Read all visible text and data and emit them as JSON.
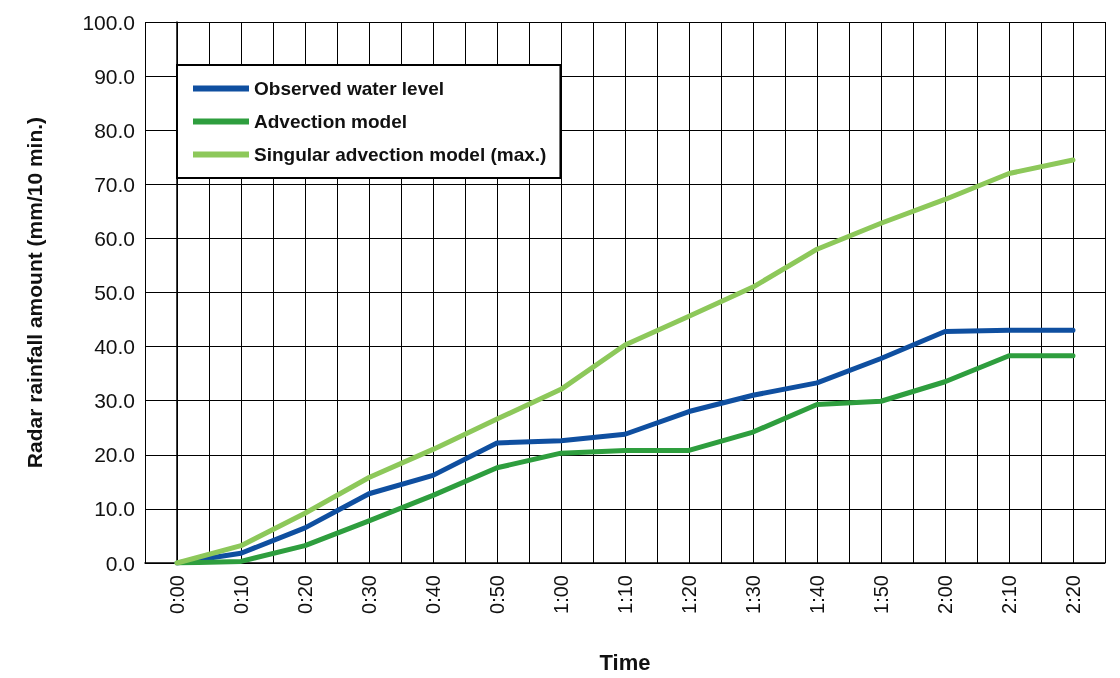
{
  "chart_data": {
    "type": "line",
    "xlabel": "Time",
    "ylabel": "Radar rainfall amount (mm/10 min.)",
    "x": [
      0,
      0.1667,
      0.3333,
      0.5,
      0.6667,
      0.8333,
      1,
      1.1667,
      1.3333,
      1.5,
      1.6667,
      1.8333,
      2,
      2.1667,
      2.3333
    ],
    "series": [
      {
        "name": "Observed water level",
        "color": "#0f4fa0",
        "values": [
          0,
          1.8,
          6.5,
          12.8,
          16.2,
          22.2,
          22.6,
          23.8,
          28.0,
          31.0,
          33.3,
          37.8,
          42.8,
          43.0,
          43.0
        ]
      },
      {
        "name": "Advection model",
        "color": "#2e9e3e",
        "values": [
          0,
          0.3,
          3.2,
          7.8,
          12.5,
          17.6,
          20.3,
          20.8,
          20.8,
          24.2,
          29.3,
          29.9,
          33.5,
          38.3,
          38.3
        ]
      },
      {
        "name": "Singular advection model (max.)",
        "color": "#8dc85a",
        "values": [
          0,
          3.2,
          9.2,
          15.8,
          21.0,
          26.6,
          32.1,
          40.3,
          45.6,
          51.0,
          58.0,
          62.8,
          67.2,
          72.0,
          74.5
        ]
      }
    ],
    "xlim": [
      -0.0833,
      2.4167
    ],
    "xticks": [
      {
        "value": -0.0833,
        "label": null
      },
      {
        "value": 0,
        "label": "0:00"
      },
      {
        "value": 0.0833,
        "label": null
      },
      {
        "value": 0.1667,
        "label": "0:10"
      },
      {
        "value": 0.25,
        "label": null
      },
      {
        "value": 0.3333,
        "label": "0:20"
      },
      {
        "value": 0.4167,
        "label": null
      },
      {
        "value": 0.5,
        "label": "0:30"
      },
      {
        "value": 0.5833,
        "label": null
      },
      {
        "value": 0.6667,
        "label": "0:40"
      },
      {
        "value": 0.75,
        "label": null
      },
      {
        "value": 0.8333,
        "label": "0:50"
      },
      {
        "value": 0.9167,
        "label": null
      },
      {
        "value": 1,
        "label": "1:00"
      },
      {
        "value": 1.0833,
        "label": null
      },
      {
        "value": 1.1667,
        "label": "1:10"
      },
      {
        "value": 1.25,
        "label": null
      },
      {
        "value": 1.3333,
        "label": "1:20"
      },
      {
        "value": 1.4167,
        "label": null
      },
      {
        "value": 1.5,
        "label": "1:30"
      },
      {
        "value": 1.5833,
        "label": null
      },
      {
        "value": 1.6667,
        "label": "1:40"
      },
      {
        "value": 1.75,
        "label": null
      },
      {
        "value": 1.8333,
        "label": "1:50"
      },
      {
        "value": 1.9167,
        "label": null
      },
      {
        "value": 2,
        "label": "2:00"
      },
      {
        "value": 2.0833,
        "label": null
      },
      {
        "value": 2.1667,
        "label": "2:10"
      },
      {
        "value": 2.25,
        "label": null
      },
      {
        "value": 2.3333,
        "label": "2:20"
      },
      {
        "value": 2.4167,
        "label": null
      }
    ],
    "ylim": [
      0,
      100
    ],
    "yticks": [
      {
        "value": 0,
        "label": "0.0"
      },
      {
        "value": 10,
        "label": "10.0"
      },
      {
        "value": 20,
        "label": "20.0"
      },
      {
        "value": 30,
        "label": "30.0"
      },
      {
        "value": 40,
        "label": "40.0"
      },
      {
        "value": 50,
        "label": "50.0"
      },
      {
        "value": 60,
        "label": "60.0"
      },
      {
        "value": 70,
        "label": "70.0"
      },
      {
        "value": 80,
        "label": "80.0"
      },
      {
        "value": 90,
        "label": "90.0"
      },
      {
        "value": 100,
        "label": "100.0"
      }
    ],
    "grid": true,
    "legend": "top left",
    "marker": "none",
    "line_style": "solid"
  }
}
